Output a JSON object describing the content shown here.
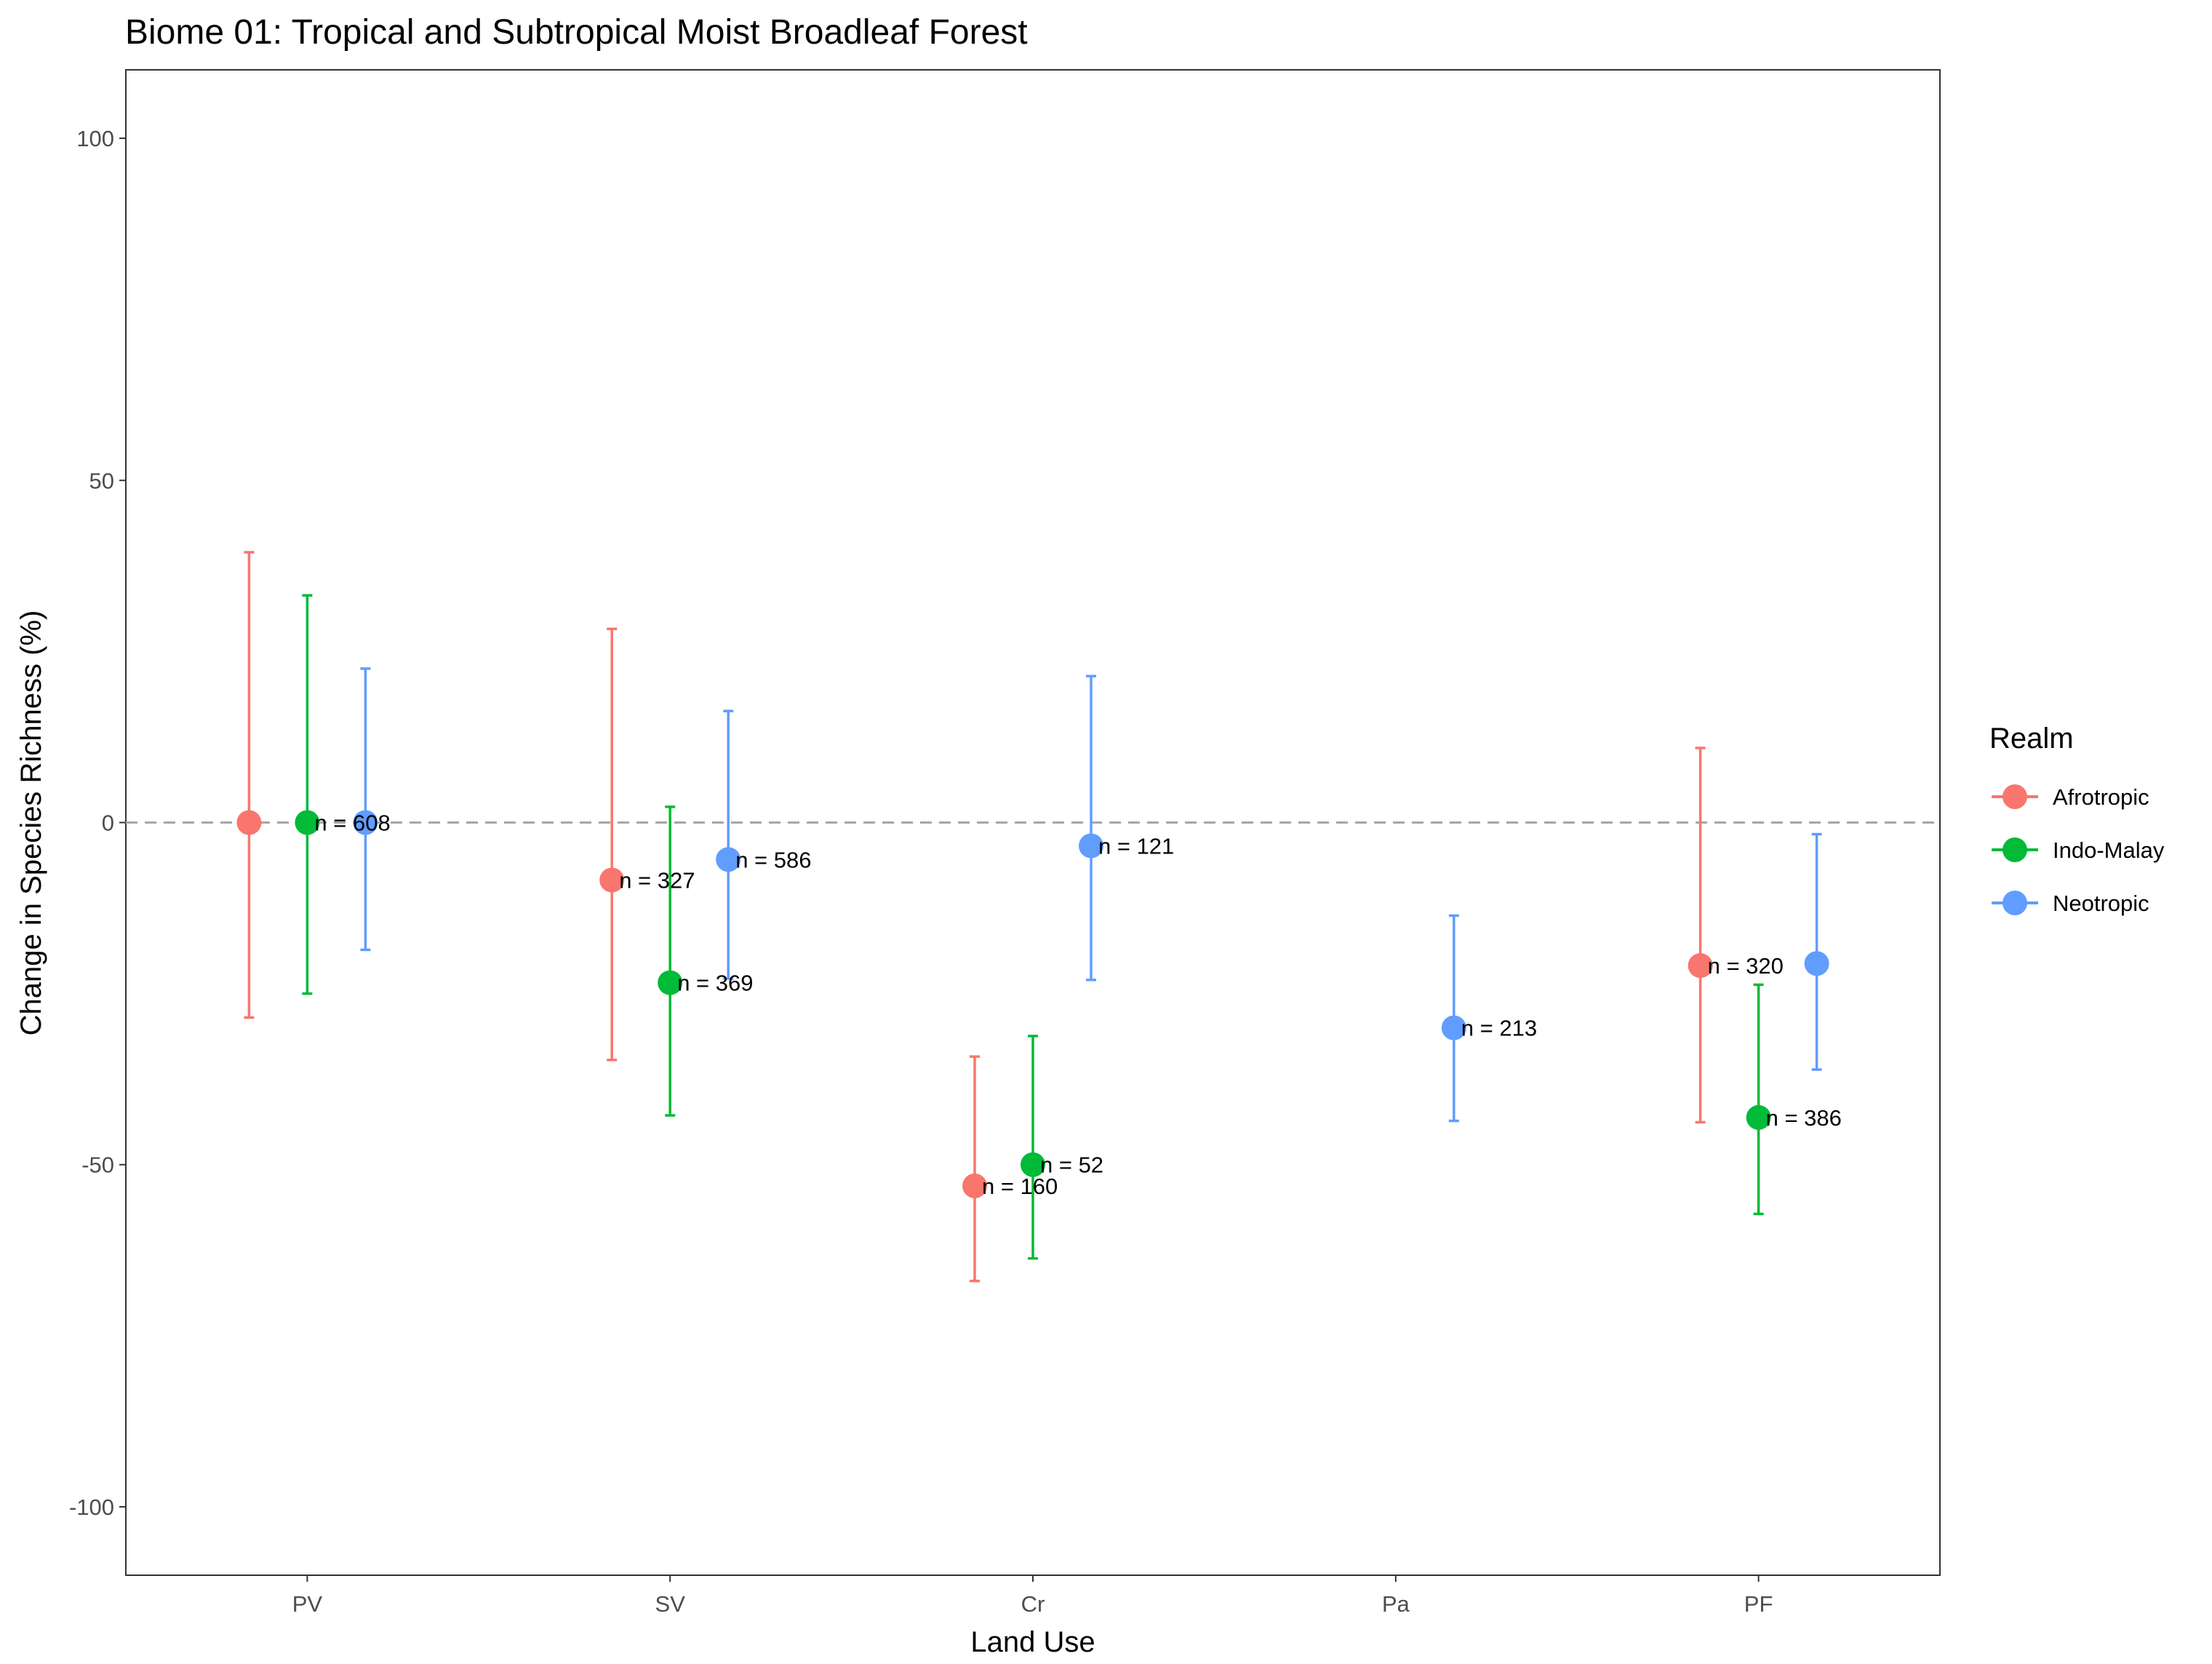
{
  "chart_data": {
    "type": "scatter",
    "title": "Biome 01: Tropical and Subtropical Moist Broadleaf Forest",
    "xlabel": "Land Use",
    "ylabel": "Change in Species Richness (%)",
    "categories": [
      "PV",
      "SV",
      "Cr",
      "Pa",
      "PF"
    ],
    "ylim": [
      -110,
      110
    ],
    "yticks": [
      -100,
      -50,
      0,
      50,
      100
    ],
    "reference_line": 0,
    "grid": false,
    "legend": {
      "title": "Realm",
      "position": "right"
    },
    "series": [
      {
        "name": "Afrotropic",
        "color": "#F8766D",
        "points": [
          {
            "category": "PV",
            "y": 0,
            "lower": -28.5,
            "upper": 39.5,
            "n_label": ""
          },
          {
            "category": "SV",
            "y": -8.4,
            "lower": -34.7,
            "upper": 28.3,
            "n_label": "n =  327"
          },
          {
            "category": "Cr",
            "y": -53.1,
            "lower": -67.0,
            "upper": -34.2,
            "n_label": "n =  160"
          },
          {
            "category": "PF",
            "y": -20.9,
            "lower": -43.8,
            "upper": 10.9,
            "n_label": "n =  320"
          }
        ]
      },
      {
        "name": "Indo-Malay",
        "color": "#00BA38",
        "points": [
          {
            "category": "PV",
            "y": 0,
            "lower": -25.0,
            "upper": 33.2,
            "n_label": "n =  608"
          },
          {
            "category": "SV",
            "y": -23.4,
            "lower": -42.8,
            "upper": 2.3,
            "n_label": "n =  369"
          },
          {
            "category": "Cr",
            "y": -50.0,
            "lower": -63.7,
            "upper": -31.2,
            "n_label": "n =  52"
          },
          {
            "category": "PF",
            "y": -43.1,
            "lower": -57.2,
            "upper": -23.7,
            "n_label": "n =  386"
          }
        ]
      },
      {
        "name": "Neotropic",
        "color": "#619CFF",
        "points": [
          {
            "category": "PV",
            "y": 0,
            "lower": -18.6,
            "upper": 22.5,
            "n_label": ""
          },
          {
            "category": "SV",
            "y": -5.4,
            "lower": -22.8,
            "upper": 16.3,
            "n_label": "n =  586"
          },
          {
            "category": "Cr",
            "y": -3.4,
            "lower": -23.0,
            "upper": 21.4,
            "n_label": "n =  121"
          },
          {
            "category": "Pa",
            "y": -30.0,
            "lower": -43.6,
            "upper": -13.6,
            "n_label": "n =  213"
          },
          {
            "category": "PF",
            "y": -20.6,
            "lower": -36.1,
            "upper": -1.7,
            "n_label": ""
          }
        ]
      }
    ]
  }
}
